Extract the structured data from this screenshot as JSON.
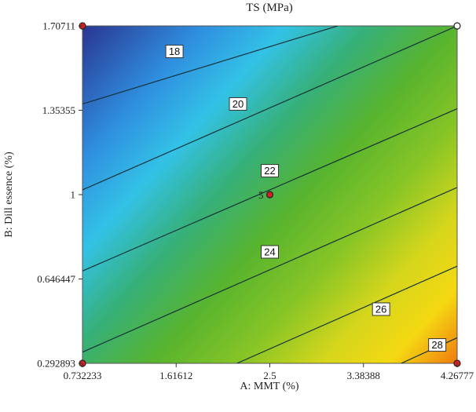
{
  "chart_data": {
    "type": "contour",
    "title": "TS (MPa)",
    "xlabel": "A: MMT (%)",
    "ylabel": "B: Dill essence (%)",
    "xlim": [
      0.732233,
      4.26777
    ],
    "ylim": [
      0.292893,
      1.70711
    ],
    "x_ticks": [
      "0.732233",
      "1.61612",
      "2.5",
      "3.38388",
      "4.26777"
    ],
    "y_ticks": [
      "0.292893",
      "0.646447",
      "1",
      "1.35355",
      "1.70711"
    ],
    "contour_levels": [
      {
        "label": "18",
        "value": 18,
        "label_x": 1.6,
        "label_y": 1.6,
        "x1": 0.732233,
        "y1": 1.38,
        "x2": 3.14,
        "y2": 1.70711
      },
      {
        "label": "20",
        "value": 20,
        "label_x": 2.2,
        "label_y": 1.38,
        "x1": 0.732233,
        "y1": 1.02,
        "x2": 4.26777,
        "y2": 1.70711
      },
      {
        "label": "22",
        "value": 22,
        "label_x": 2.5,
        "label_y": 1.1,
        "x1": 0.732233,
        "y1": 0.68,
        "x2": 4.26777,
        "y2": 1.36
      },
      {
        "label": "24",
        "value": 24,
        "label_x": 2.5,
        "label_y": 0.76,
        "x1": 0.732233,
        "y1": 0.34,
        "x2": 4.26777,
        "y2": 1.03
      },
      {
        "label": "26",
        "value": 26,
        "label_x": 3.55,
        "label_y": 0.52,
        "x1": 2.19,
        "y1": 0.292893,
        "x2": 4.26777,
        "y2": 0.7
      },
      {
        "label": "28",
        "value": 28,
        "label_x": 4.08,
        "label_y": 0.37,
        "x1": 3.74,
        "y1": 0.292893,
        "x2": 4.26777,
        "y2": 0.4
      }
    ],
    "design_points": [
      {
        "x": 0.732233,
        "y": 1.70711,
        "count": "",
        "style": "filled"
      },
      {
        "x": 4.26777,
        "y": 1.70711,
        "count": "",
        "style": "open"
      },
      {
        "x": 2.5,
        "y": 1,
        "count": "5",
        "style": "filled"
      },
      {
        "x": 0.732233,
        "y": 0.292893,
        "count": "",
        "style": "filled"
      },
      {
        "x": 4.26777,
        "y": 0.292893,
        "count": "",
        "style": "filled"
      }
    ],
    "colors": {
      "point_fill": "#d42020",
      "contour_line": "#14323a",
      "low": "#2b3a8f",
      "mid": "#5ab42e",
      "high": "#f07a10"
    }
  }
}
